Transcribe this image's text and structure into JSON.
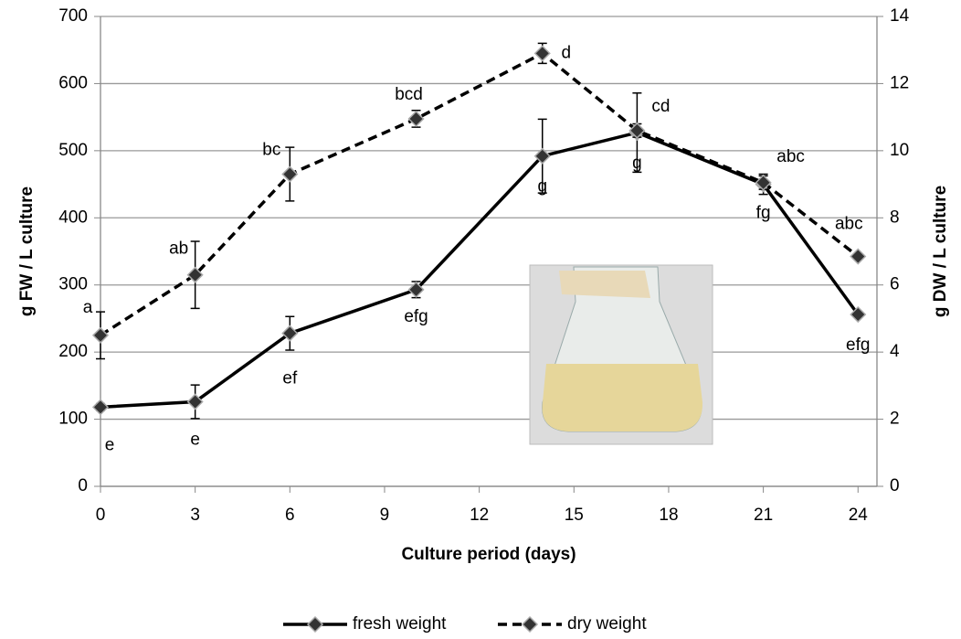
{
  "chart_data": {
    "type": "line",
    "x_label": "Culture period (days)",
    "y_label": "g FW / L culture",
    "y2_label": "g DW / L culture",
    "x": [
      0,
      3,
      6,
      10,
      14,
      17,
      21,
      24
    ],
    "xlim": [
      0,
      24.6
    ],
    "xticks": [
      0,
      3,
      6,
      9,
      12,
      15,
      18,
      21,
      24
    ],
    "ylim": [
      0,
      700
    ],
    "yticks": [
      0,
      100,
      200,
      300,
      400,
      500,
      600,
      700
    ],
    "y2lim": [
      0,
      14
    ],
    "y2ticks": [
      0,
      2,
      4,
      6,
      8,
      10,
      12,
      14
    ],
    "grid": true,
    "legend": "bottom",
    "series": [
      {
        "name": "fresh weight",
        "color": "#000000",
        "dash": false,
        "values": [
          118,
          126,
          228,
          293,
          492,
          527,
          450,
          256
        ],
        "errors": [
          5,
          25,
          25,
          12,
          55,
          59,
          15,
          3
        ],
        "point_labels": [
          "e",
          "e",
          "ef",
          "efg",
          "g",
          "g",
          "fg",
          "efg"
        ]
      },
      {
        "name": "dry weight",
        "color": "#000000",
        "dash": true,
        "axis": "y2",
        "values": [
          4.5,
          6.3,
          9.3,
          10.95,
          12.9,
          10.6,
          9.05,
          6.85
        ],
        "errors": [
          0.7,
          1.0,
          0.8,
          0.25,
          0.3,
          0.2,
          0.2,
          0.05
        ],
        "point_labels": [
          "a",
          "ab",
          "bc",
          "bcd",
          "d",
          "cd",
          "abc",
          "abc"
        ]
      }
    ]
  }
}
